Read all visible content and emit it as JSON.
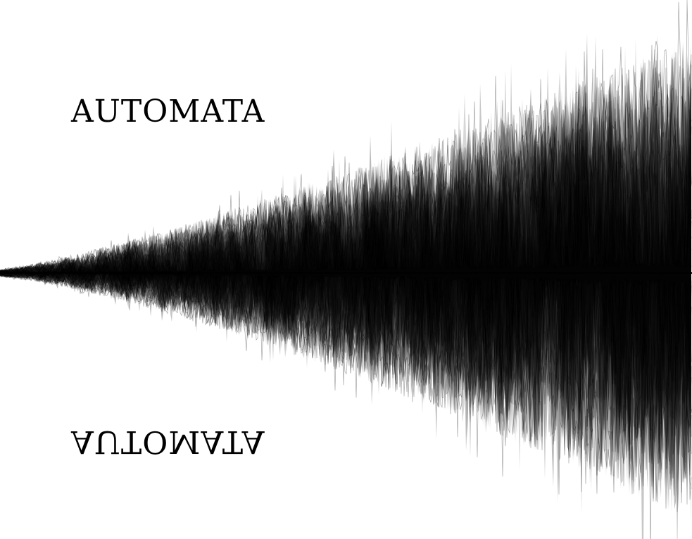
{
  "title": "AUTOMATA",
  "title_mirrored": "AUTOMATA",
  "colors": {
    "background": "#ffffff",
    "ink": "#000000",
    "light_wave": "#8c8c8c",
    "mid_wave": "#3a3a3a"
  }
}
